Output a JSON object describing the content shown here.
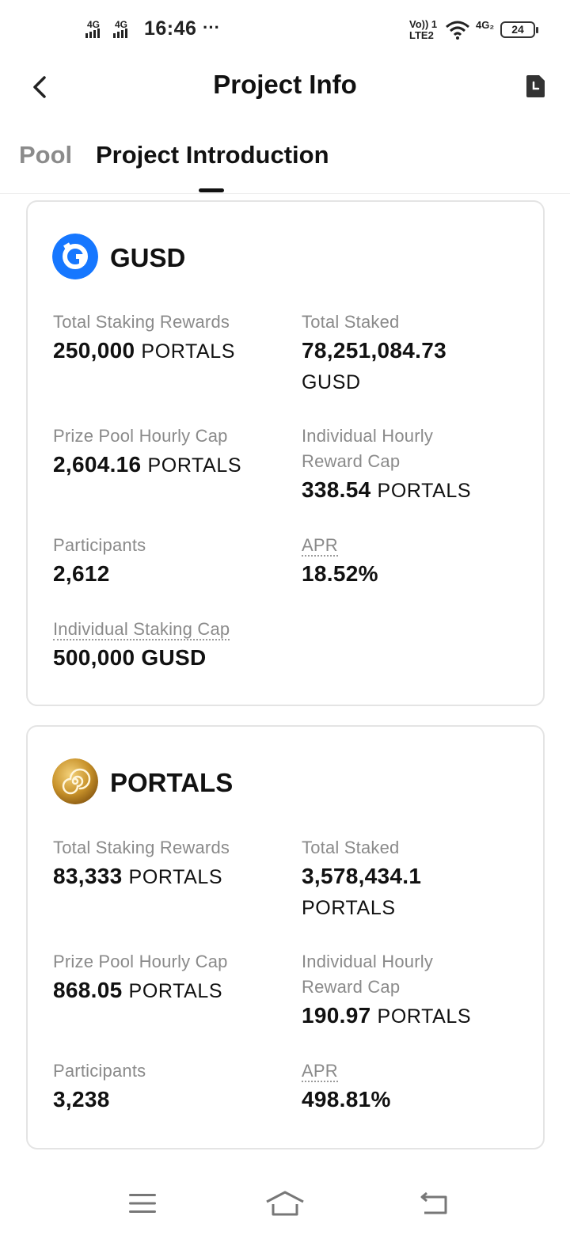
{
  "status_bar": {
    "signal1": "4G",
    "signal2": "4G",
    "time": "16:46",
    "more": "···",
    "volte_top": "Vo)) 1",
    "volte_bottom": "LTE2",
    "net_type": "4G₂",
    "battery": "24"
  },
  "header": {
    "title": "Project Info",
    "back_icon": "chevron-left-icon",
    "history_icon": "document-clock-icon"
  },
  "tabs": [
    {
      "label": "Pool",
      "active": false
    },
    {
      "label": "Project Introduction",
      "active": true
    }
  ],
  "pools": [
    {
      "coin": "GUSD",
      "icon": "gusd-coin-icon",
      "icon_color": "#1677ff",
      "stats": {
        "total_staking_rewards": {
          "label": "Total Staking Rewards",
          "value": "250,000",
          "unit": "PORTALS"
        },
        "total_staked": {
          "label": "Total Staked",
          "value": "78,251,084.73",
          "unit": "GUSD"
        },
        "prize_pool_hourly_cap": {
          "label": "Prize Pool Hourly Cap",
          "value": "2,604.16",
          "unit": "PORTALS"
        },
        "individual_hourly_reward_cap": {
          "label_line1": "Individual Hourly",
          "label_line2": "Reward Cap",
          "value": "338.54",
          "unit": "PORTALS"
        },
        "participants": {
          "label": "Participants",
          "value": "2,612"
        },
        "apr": {
          "label": "APR",
          "value": "18.52%"
        },
        "individual_staking_cap": {
          "label": "Individual Staking Cap",
          "value": "500,000 GUSD"
        }
      }
    },
    {
      "coin": "PORTALS",
      "icon": "portals-coin-icon",
      "icon_color": "#c8922a",
      "stats": {
        "total_staking_rewards": {
          "label": "Total Staking Rewards",
          "value": "83,333",
          "unit": "PORTALS"
        },
        "total_staked": {
          "label": "Total Staked",
          "value": "3,578,434.1",
          "unit": "PORTALS"
        },
        "prize_pool_hourly_cap": {
          "label": "Prize Pool Hourly Cap",
          "value": "868.05",
          "unit": "PORTALS"
        },
        "individual_hourly_reward_cap": {
          "label_line1": "Individual Hourly",
          "label_line2": "Reward Cap",
          "value": "190.97",
          "unit": "PORTALS"
        },
        "participants": {
          "label": "Participants",
          "value": "3,238"
        },
        "apr": {
          "label": "APR",
          "value": "498.81%"
        }
      }
    }
  ],
  "nav_bar": {
    "menu_icon": "menu-icon",
    "home_icon": "home-icon",
    "back_icon": "back-arrow-icon"
  }
}
